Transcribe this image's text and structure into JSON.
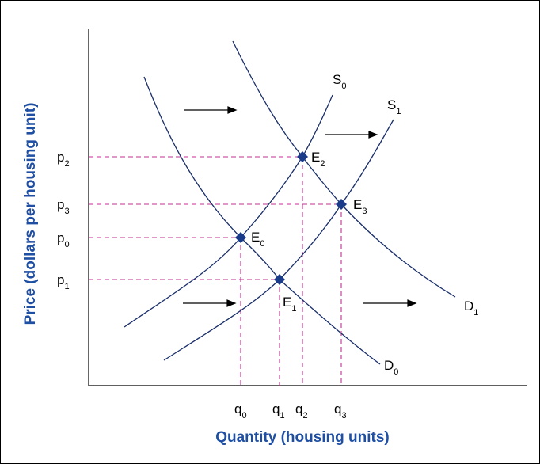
{
  "axes": {
    "x_title": "Quantity (housing units)",
    "y_title": "Price (dollars per housing unit)"
  },
  "price_labels": [
    {
      "base": "p",
      "sub": "2"
    },
    {
      "base": "p",
      "sub": "3"
    },
    {
      "base": "p",
      "sub": "0"
    },
    {
      "base": "p",
      "sub": "1"
    }
  ],
  "quantity_labels": [
    {
      "base": "q",
      "sub": "0"
    },
    {
      "base": "q",
      "sub": "1"
    },
    {
      "base": "q",
      "sub": "2"
    },
    {
      "base": "q",
      "sub": "3"
    }
  ],
  "curve_labels": [
    {
      "base": "S",
      "sub": "0"
    },
    {
      "base": "S",
      "sub": "1"
    },
    {
      "base": "D",
      "sub": "0"
    },
    {
      "base": "D",
      "sub": "1"
    }
  ],
  "equilibrium_labels": [
    {
      "base": "E",
      "sub": "0"
    },
    {
      "base": "E",
      "sub": "1"
    },
    {
      "base": "E",
      "sub": "2"
    },
    {
      "base": "E",
      "sub": "3"
    }
  ],
  "colors": {
    "axis_title": "#1f4fa3",
    "curve": "#1a2f6b",
    "guide": "#c0308f",
    "point": "#1a3a8a"
  }
}
